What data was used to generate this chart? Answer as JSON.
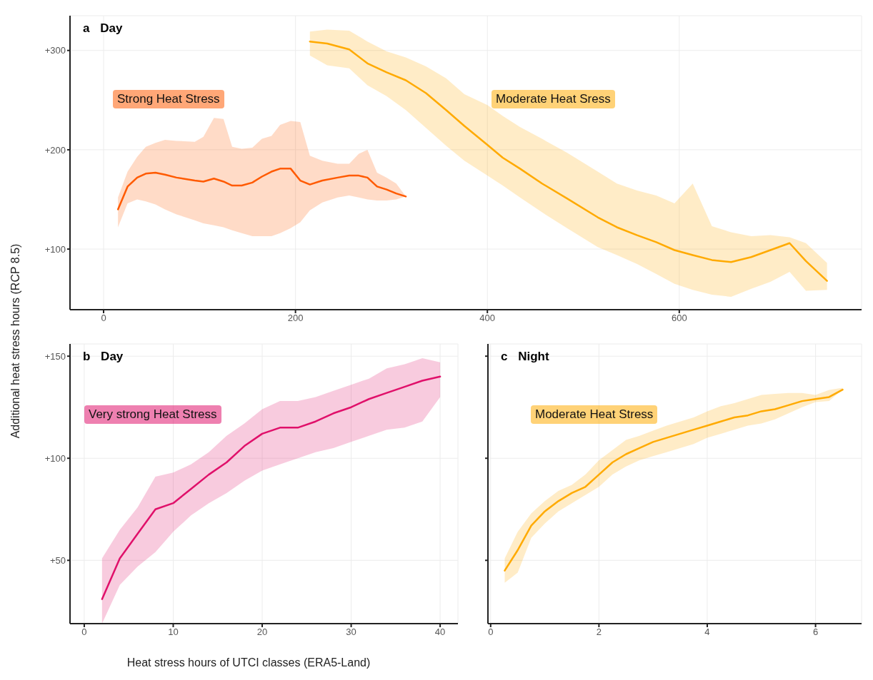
{
  "chart_data": [
    {
      "type": "line",
      "title": "a Day",
      "ylabel": "Additional heat stress hours (RCP 8.5)",
      "xlim": [
        -35,
        790
      ],
      "ylim": [
        39,
        335
      ],
      "xticks": [
        0,
        200,
        400,
        600
      ],
      "yticks": [
        {
          "value": 100,
          "label": "+100"
        },
        {
          "value": 200,
          "label": "+200"
        },
        {
          "value": 300,
          "label": "+300"
        }
      ],
      "grid": true,
      "series": [
        {
          "name": "Strong Heat Stress",
          "color": "#ff5a00",
          "x": [
            15,
            25,
            35,
            44,
            54,
            64,
            76,
            95,
            104,
            115,
            125,
            134,
            144,
            155,
            165,
            175,
            184,
            195,
            205,
            215,
            228,
            244,
            256,
            266,
            275,
            285,
            295,
            305,
            315
          ],
          "values": [
            140,
            163,
            172,
            176,
            177,
            175,
            172,
            169,
            168,
            171,
            168,
            164,
            164,
            167,
            173,
            178,
            181,
            181,
            169,
            165,
            169,
            172,
            174,
            174,
            172,
            163,
            160,
            156,
            153
          ],
          "upper": [
            152,
            178,
            193,
            203,
            207,
            210,
            209,
            208,
            213,
            232,
            231,
            203,
            201,
            202,
            211,
            214,
            225,
            229,
            228,
            194,
            189,
            186,
            186,
            196,
            200,
            177,
            172,
            166,
            153
          ],
          "lower": [
            122,
            146,
            150,
            148,
            145,
            140,
            135,
            129,
            126,
            124,
            122,
            119,
            116,
            113,
            113,
            113,
            116,
            121,
            127,
            139,
            147,
            152,
            154,
            152,
            150,
            149,
            149,
            150,
            153
          ]
        },
        {
          "name": "Moderate Heat Sress",
          "color": "#ffaa00",
          "x": [
            215,
            233,
            256,
            275,
            295,
            315,
            336,
            357,
            376,
            400,
            416,
            434,
            457,
            483,
            515,
            535,
            556,
            576,
            595,
            614,
            634,
            654,
            675,
            695,
            715,
            732,
            754
          ],
          "values": [
            309,
            307,
            301,
            287,
            278,
            270,
            257,
            240,
            224,
            205,
            192,
            181,
            166,
            151,
            132,
            122,
            114,
            107,
            99,
            94,
            89,
            87,
            92,
            99,
            106,
            88,
            68
          ],
          "upper": [
            319,
            321,
            320,
            309,
            299,
            293,
            284,
            272,
            256,
            245,
            234,
            223,
            211,
            197,
            178,
            166,
            159,
            154,
            146,
            166,
            123,
            117,
            113,
            114,
            112,
            106,
            86
          ],
          "lower": [
            295,
            285,
            282,
            265,
            254,
            240,
            222,
            204,
            189,
            174,
            164,
            152,
            137,
            121,
            102,
            94,
            85,
            75,
            65,
            59,
            54,
            52,
            60,
            67,
            77,
            58,
            59
          ]
        }
      ]
    },
    {
      "type": "line",
      "title": "b Day",
      "xlabel": "Heat stress hours of UTCI classes (ERA5-Land)",
      "xlim": [
        -1.6,
        42
      ],
      "ylim": [
        19,
        156
      ],
      "xticks": [
        0,
        10,
        20,
        30,
        40
      ],
      "yticks": [
        {
          "value": 50,
          "label": "+50"
        },
        {
          "value": 100,
          "label": "+100"
        },
        {
          "value": 150,
          "label": "+150"
        }
      ],
      "grid": true,
      "series": [
        {
          "name": "Very strong Heat Stress",
          "color": "#e0106a",
          "x": [
            2,
            4,
            6,
            8,
            10,
            12,
            14,
            16,
            18,
            20,
            22,
            24,
            26,
            28,
            30,
            32,
            34,
            36,
            38,
            40
          ],
          "values": [
            31,
            51,
            63,
            75,
            78,
            85,
            92,
            98,
            106,
            112,
            115,
            115,
            118,
            122,
            125,
            129,
            132,
            135,
            138,
            140
          ],
          "upper": [
            51,
            65,
            76,
            91,
            93,
            97,
            103,
            111,
            117,
            124,
            128,
            128,
            130,
            133,
            136,
            139,
            144,
            146,
            149,
            147
          ],
          "lower": [
            19,
            38,
            47,
            54,
            64,
            72,
            78,
            83,
            89,
            94,
            97,
            100,
            103,
            105,
            108,
            111,
            114,
            115,
            118,
            130
          ]
        }
      ]
    },
    {
      "type": "line",
      "title": "c Night",
      "xlim": [
        -0.05,
        6.85
      ],
      "ylim": [
        19,
        156
      ],
      "xticks": [
        0,
        2,
        4,
        6
      ],
      "yticks": [
        50,
        100,
        150
      ],
      "tick_labels": "x",
      "grid": true,
      "series": [
        {
          "name": "Moderate Heat Stress",
          "color": "#ffaa00",
          "x": [
            0.26,
            0.5,
            0.75,
            1,
            1.25,
            1.5,
            1.75,
            2,
            2.25,
            2.5,
            2.75,
            3,
            3.25,
            3.5,
            3.75,
            4,
            4.25,
            4.5,
            4.75,
            5,
            5.25,
            5.5,
            5.75,
            6,
            6.25,
            6.5
          ],
          "values": [
            45,
            55,
            67,
            74,
            79,
            83,
            86,
            92,
            98,
            102,
            105,
            108,
            110,
            112,
            114,
            116,
            118,
            120,
            121,
            123,
            124,
            126,
            128,
            129,
            130,
            133.6
          ],
          "upper": [
            51,
            64,
            73,
            79,
            84,
            87,
            92,
            99,
            104,
            109,
            111,
            113.5,
            116,
            118,
            120,
            123,
            125.5,
            127,
            129,
            131,
            131.5,
            132,
            132,
            131,
            133.5,
            134.5
          ],
          "lower": [
            39,
            44,
            61,
            68,
            74,
            78,
            82,
            86,
            92,
            96,
            99,
            101,
            103,
            105,
            107,
            110,
            112,
            114,
            116,
            117,
            119,
            122,
            125,
            127.5,
            128,
            133.6
          ]
        }
      ]
    }
  ]
}
